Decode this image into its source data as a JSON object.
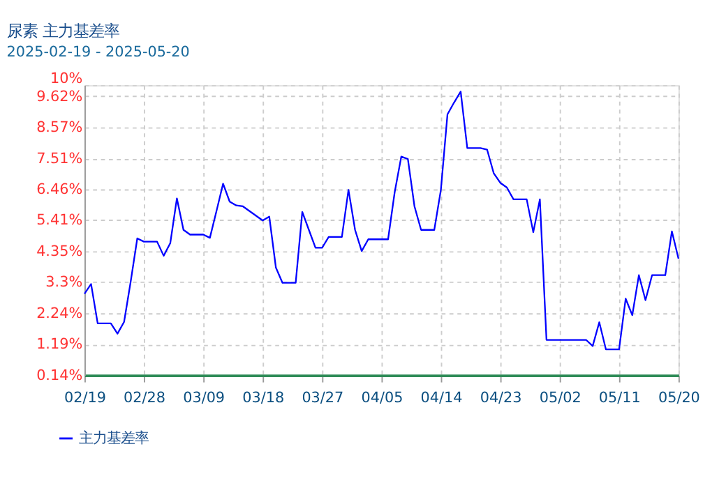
{
  "chart_data": {
    "type": "line",
    "title": "尿素  主力基差率",
    "subtitle": "2025-02-19 - 2025-05-20",
    "x": [
      "2025-02-19",
      "2025-02-20",
      "2025-02-21",
      "2025-02-23",
      "2025-02-24",
      "2025-02-25",
      "2025-02-26",
      "2025-02-27",
      "2025-02-28",
      "2025-03-02",
      "2025-03-03",
      "2025-03-04",
      "2025-03-05",
      "2025-03-06",
      "2025-03-07",
      "2025-03-09",
      "2025-03-10",
      "2025-03-11",
      "2025-03-12",
      "2025-03-13",
      "2025-03-14",
      "2025-03-15",
      "2025-03-16",
      "2025-03-17",
      "2025-03-18",
      "2025-03-19",
      "2025-03-20",
      "2025-03-21",
      "2025-03-23",
      "2025-03-24",
      "2025-03-25",
      "2025-03-26",
      "2025-03-27",
      "2025-03-28",
      "2025-03-30",
      "2025-03-31",
      "2025-04-01",
      "2025-04-02",
      "2025-04-03",
      "2025-04-06",
      "2025-04-07",
      "2025-04-08",
      "2025-04-09",
      "2025-04-10",
      "2025-04-11",
      "2025-04-13",
      "2025-04-14",
      "2025-04-15",
      "2025-04-16",
      "2025-04-17",
      "2025-04-18",
      "2025-04-20",
      "2025-04-21",
      "2025-04-22",
      "2025-04-23",
      "2025-04-24",
      "2025-04-25",
      "2025-04-27",
      "2025-04-28",
      "2025-04-29",
      "2025-04-30",
      "2025-05-06",
      "2025-05-07",
      "2025-05-08",
      "2025-05-09",
      "2025-05-11",
      "2025-05-12",
      "2025-05-13",
      "2025-05-14",
      "2025-05-15",
      "2025-05-16",
      "2025-05-18",
      "2025-05-19",
      "2025-05-20"
    ],
    "series": [
      {
        "name": "主力基差率",
        "color": "#0000ff",
        "values": [
          2.91,
          3.24,
          1.9,
          1.9,
          1.55,
          1.95,
          3.32,
          4.79,
          4.68,
          4.68,
          4.2,
          4.63,
          6.15,
          5.08,
          4.92,
          4.92,
          4.81,
          5.72,
          6.65,
          6.04,
          5.91,
          5.88,
          5.72,
          5.56,
          5.4,
          5.53,
          3.8,
          3.28,
          3.28,
          5.69,
          5.08,
          4.47,
          4.47,
          4.84,
          4.84,
          6.44,
          5.08,
          4.36,
          4.76,
          4.76,
          6.36,
          7.57,
          7.49,
          5.88,
          5.08,
          5.08,
          6.44,
          9.01,
          9.41,
          9.78,
          7.86,
          7.86,
          7.81,
          7.01,
          6.68,
          6.52,
          6.12,
          6.12,
          5.0,
          6.12,
          1.34,
          1.34,
          1.13,
          1.94,
          1.02,
          1.02,
          2.74,
          2.18,
          3.54,
          2.69,
          3.54,
          3.54,
          5.03,
          4.1
        ]
      }
    ],
    "xlim": [
      "2025-02-19",
      "2025-05-20"
    ],
    "xticks": [
      {
        "value": "2025-02-19",
        "label": "02/19"
      },
      {
        "value": "2025-02-28",
        "label": "02/28"
      },
      {
        "value": "2025-03-09",
        "label": "03/09"
      },
      {
        "value": "2025-03-18",
        "label": "03/18"
      },
      {
        "value": "2025-03-27",
        "label": "03/27"
      },
      {
        "value": "2025-04-05",
        "label": "04/05"
      },
      {
        "value": "2025-04-14",
        "label": "04/14"
      },
      {
        "value": "2025-04-23",
        "label": "04/23"
      },
      {
        "value": "2025-05-02",
        "label": "05/02"
      },
      {
        "value": "2025-05-11",
        "label": "05/11"
      },
      {
        "value": "2025-05-20",
        "label": "05/20"
      }
    ],
    "ylim": [
      0.14,
      10
    ],
    "yticks": [
      {
        "value": 0.14,
        "label": "0.14%"
      },
      {
        "value": 1.19,
        "label": "1.19%"
      },
      {
        "value": 2.24,
        "label": "2.24%"
      },
      {
        "value": 3.3,
        "label": "3.3%"
      },
      {
        "value": 4.35,
        "label": "4.35%"
      },
      {
        "value": 5.41,
        "label": "5.41%"
      },
      {
        "value": 6.46,
        "label": "6.46%"
      },
      {
        "value": 7.51,
        "label": "7.51%"
      },
      {
        "value": 8.57,
        "label": "8.57%"
      },
      {
        "value": 9.62,
        "label": "9.62%"
      },
      {
        "value": 10,
        "label": "10%"
      }
    ],
    "grid": true,
    "legend": "bottom left",
    "marker": "none",
    "line_style": "solid"
  }
}
